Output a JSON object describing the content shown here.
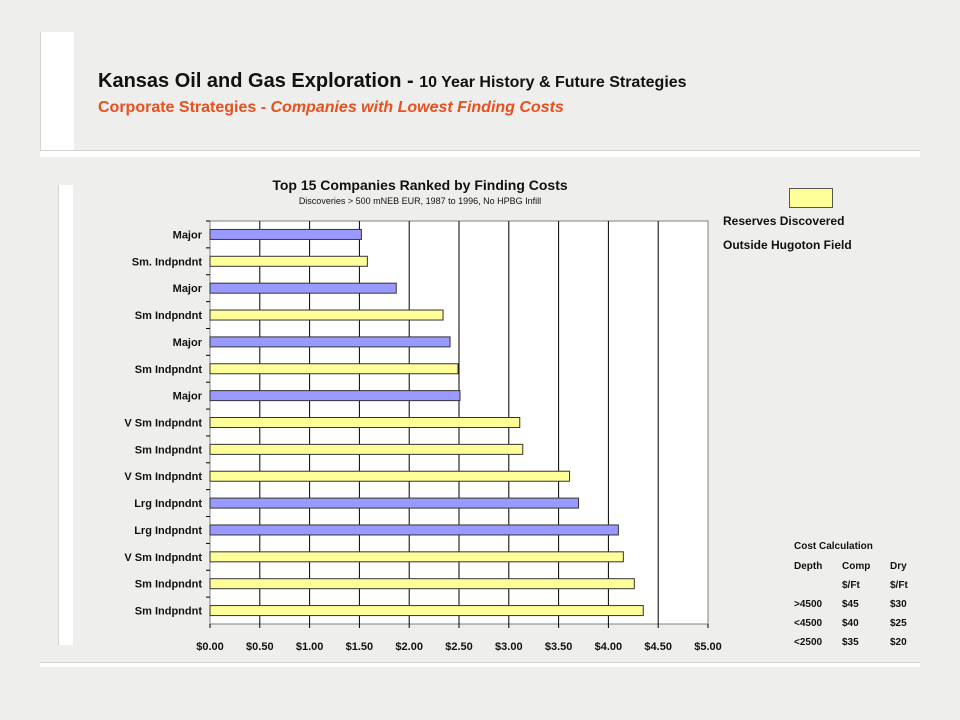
{
  "header": {
    "title_main": "Kansas Oil and Gas Exploration - ",
    "title_rest": "10 Year History & Future Strategies",
    "subtitle_lead": "Corporate Strategies - ",
    "subtitle_italic": "Companies with Lowest Finding Costs"
  },
  "legend": {
    "line1": "Reserves Discovered",
    "line2": "Outside Hugoton Field",
    "swatch_color": "#ffff99"
  },
  "cost_table": {
    "title": "Cost Calculation",
    "rows": [
      [
        "Depth",
        "Comp",
        "Dry"
      ],
      [
        "",
        "$/Ft",
        "$/Ft"
      ],
      [
        ">4500",
        "$45",
        "$30"
      ],
      [
        "<4500",
        "$40",
        "$25"
      ],
      [
        "<2500",
        "$35",
        "$20"
      ]
    ]
  },
  "colors": {
    "major_bar": "#9999ff",
    "independent_bar": "#ffff99",
    "bar_outline": "#333333",
    "subtitle": "#e8501d"
  },
  "chart_data": {
    "type": "bar",
    "orientation": "horizontal",
    "title": "Top 15 Companies Ranked by Finding Costs",
    "subtitle": "Discoveries  > 500 mNEB EUR, 1987 to 1996, No HPBG Infill",
    "xlabel": "",
    "ylabel": "",
    "xlim": [
      0,
      5
    ],
    "x_ticks": [
      "$0.00",
      "$0.50",
      "$1.00",
      "$1.50",
      "$2.00",
      "$2.50",
      "$3.00",
      "$3.50",
      "$4.00",
      "$4.50",
      "$5.00"
    ],
    "grid": "vertical gridlines",
    "legend_placement": "top-right",
    "categories": [
      "Major",
      "Sm. Indpndnt",
      "Major",
      "Sm Indpndnt",
      "Major",
      "Sm Indpndnt",
      "Major",
      "V Sm Indpndnt",
      "Sm Indpndnt",
      "V Sm Indpndnt",
      "Lrg Indpndnt",
      "Lrg Indpndnt",
      "V Sm Indpndnt",
      "Sm Indpndnt",
      "Sm Indpndnt"
    ],
    "values": [
      1.52,
      1.58,
      1.87,
      2.34,
      2.41,
      2.49,
      2.51,
      3.11,
      3.14,
      3.61,
      3.7,
      4.1,
      4.15,
      4.26,
      4.35
    ],
    "bar_colors": [
      "#9999ff",
      "#ffff99",
      "#9999ff",
      "#ffff99",
      "#9999ff",
      "#ffff99",
      "#9999ff",
      "#ffff99",
      "#ffff99",
      "#ffff99",
      "#9999ff",
      "#9999ff",
      "#ffff99",
      "#ffff99",
      "#ffff99"
    ]
  }
}
